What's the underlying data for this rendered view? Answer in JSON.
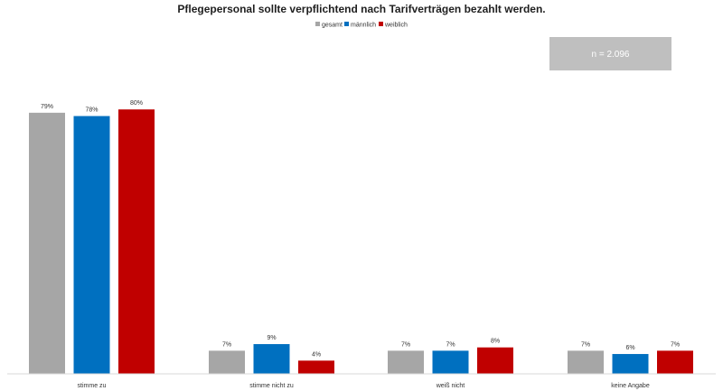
{
  "chart_data": {
    "type": "bar",
    "title": "Pflegepersonal sollte verpflichtend nach Tarifverträgen bezahlt werden.",
    "categories": [
      "stimme zu",
      "stimme nicht zu",
      "weiß nicht",
      "keine Angabe"
    ],
    "series": [
      {
        "name": "gesamt",
        "color": "#a6a6a6",
        "values": [
          79,
          7,
          7,
          7
        ],
        "labels": [
          "79%",
          "7%",
          "7%",
          "7%"
        ]
      },
      {
        "name": "männlich",
        "color": "#0070c0",
        "values": [
          78,
          9,
          7,
          6
        ],
        "labels": [
          "78%",
          "9%",
          "7%",
          "6%"
        ]
      },
      {
        "name": "weiblich",
        "color": "#c00000",
        "values": [
          80,
          4,
          8,
          7
        ],
        "labels": [
          "80%",
          "4%",
          "8%",
          "7%"
        ]
      }
    ],
    "ylim": [
      0,
      100
    ],
    "xlabel": "",
    "ylabel": "",
    "grid": false,
    "legend_position": "top-center",
    "annotation": {
      "text": "n = 2.096",
      "color": "#bfbfbf"
    }
  }
}
